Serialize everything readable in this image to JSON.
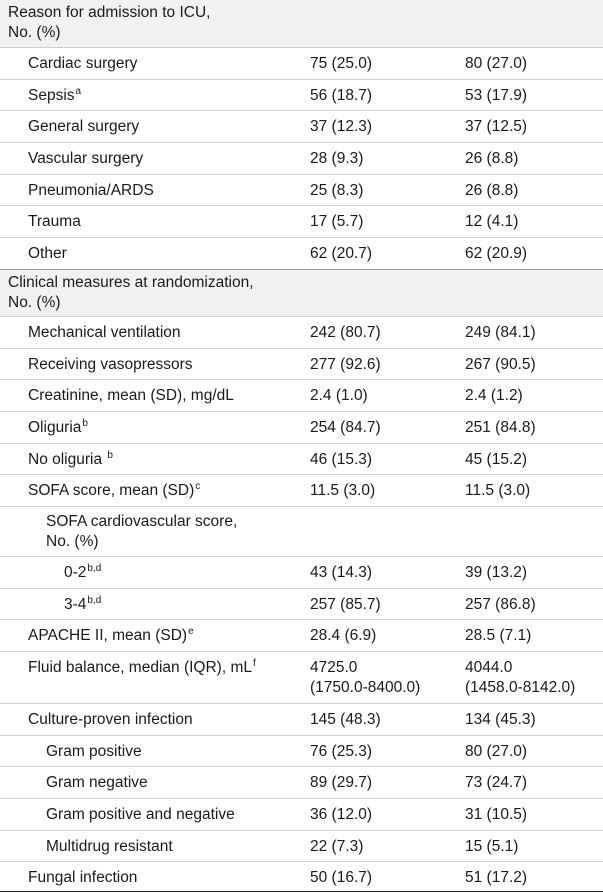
{
  "table": {
    "rows": [
      {
        "type": "section",
        "label": "Reason for admission to ICU,\nNo. (%)"
      },
      {
        "type": "row",
        "level": 1,
        "label": "Cardiac surgery",
        "sup": "",
        "a": "75 (25.0)",
        "b": "80 (27.0)"
      },
      {
        "type": "row",
        "level": 1,
        "label": "Sepsis",
        "sup": "a",
        "a": "56 (18.7)",
        "b": "53 (17.9)"
      },
      {
        "type": "row",
        "level": 1,
        "label": "General surgery",
        "sup": "",
        "a": "37 (12.3)",
        "b": "37 (12.5)"
      },
      {
        "type": "row",
        "level": 1,
        "label": "Vascular surgery",
        "sup": "",
        "a": "28 (9.3)",
        "b": "26 (8.8)"
      },
      {
        "type": "row",
        "level": 1,
        "label": "Pneumonia/ARDS",
        "sup": "",
        "a": "25 (8.3)",
        "b": "26 (8.8)"
      },
      {
        "type": "row",
        "level": 1,
        "label": "Trauma",
        "sup": "",
        "a": "17 (5.7)",
        "b": "12 (4.1)"
      },
      {
        "type": "row",
        "level": 1,
        "label": "Other",
        "sup": "",
        "a": "62 (20.7)",
        "b": "62 (20.9)"
      },
      {
        "type": "section",
        "label": "Clinical measures at randomization,\nNo. (%)"
      },
      {
        "type": "row",
        "level": 1,
        "label": "Mechanical ventilation",
        "sup": "",
        "a": "242 (80.7)",
        "b": "249 (84.1)"
      },
      {
        "type": "row",
        "level": 1,
        "label": "Receiving vasopressors",
        "sup": "",
        "a": "277 (92.6)",
        "b": "267 (90.5)"
      },
      {
        "type": "row",
        "level": 1,
        "label": "Creatinine, mean (SD), mg/dL",
        "sup": "",
        "a": "2.4 (1.0)",
        "b": "2.4 (1.2)"
      },
      {
        "type": "row",
        "level": 1,
        "label": "Oliguria",
        "sup": "b",
        "a": "254 (84.7)",
        "b": "251 (84.8)"
      },
      {
        "type": "row",
        "level": 1,
        "label": "No oliguria ",
        "sup": "b",
        "a": "46 (15.3)",
        "b": "45 (15.2)"
      },
      {
        "type": "row",
        "level": 1,
        "label": "SOFA score, mean (SD)",
        "sup": "c",
        "a": "11.5 (3.0)",
        "b": "11.5 (3.0)"
      },
      {
        "type": "subheader",
        "level": 2,
        "label": "SOFA cardiovascular score,\nNo. (%)"
      },
      {
        "type": "row",
        "level": 3,
        "label": "0-2",
        "sup": "b,d",
        "a": "43 (14.3)",
        "b": "39 (13.2)"
      },
      {
        "type": "row",
        "level": 3,
        "label": "3-4",
        "sup": "b,d",
        "a": "257 (85.7)",
        "b": "257 (86.8)"
      },
      {
        "type": "row",
        "level": 1,
        "label": "APACHE II, mean (SD)",
        "sup": "e",
        "a": "28.4 (6.9)",
        "b": "28.5 (7.1)"
      },
      {
        "type": "tall",
        "level": 1,
        "label": "Fluid balance, median (IQR), mL",
        "sup": "f",
        "a": "4725.0\n(1750.0-8400.0)",
        "b": "4044.0\n(1458.0-8142.0)"
      },
      {
        "type": "row",
        "level": 1,
        "label": "Culture-proven infection",
        "sup": "",
        "a": "145 (48.3)",
        "b": "134 (45.3)"
      },
      {
        "type": "row",
        "level": 2,
        "label": "Gram positive",
        "sup": "",
        "a": "76 (25.3)",
        "b": "80 (27.0)"
      },
      {
        "type": "row",
        "level": 2,
        "label": "Gram negative",
        "sup": "",
        "a": "89 (29.7)",
        "b": "73 (24.7)"
      },
      {
        "type": "row",
        "level": 2,
        "label": "Gram positive and negative",
        "sup": "",
        "a": "36 (12.0)",
        "b": "31 (10.5)"
      },
      {
        "type": "row",
        "level": 2,
        "label": "Multidrug resistant",
        "sup": "",
        "a": "22 (7.3)",
        "b": "15 (5.1)"
      },
      {
        "type": "row",
        "level": 1,
        "label": "Fungal infection",
        "sup": "",
        "a": "50 (16.7)",
        "b": "51 (17.2)"
      }
    ]
  }
}
